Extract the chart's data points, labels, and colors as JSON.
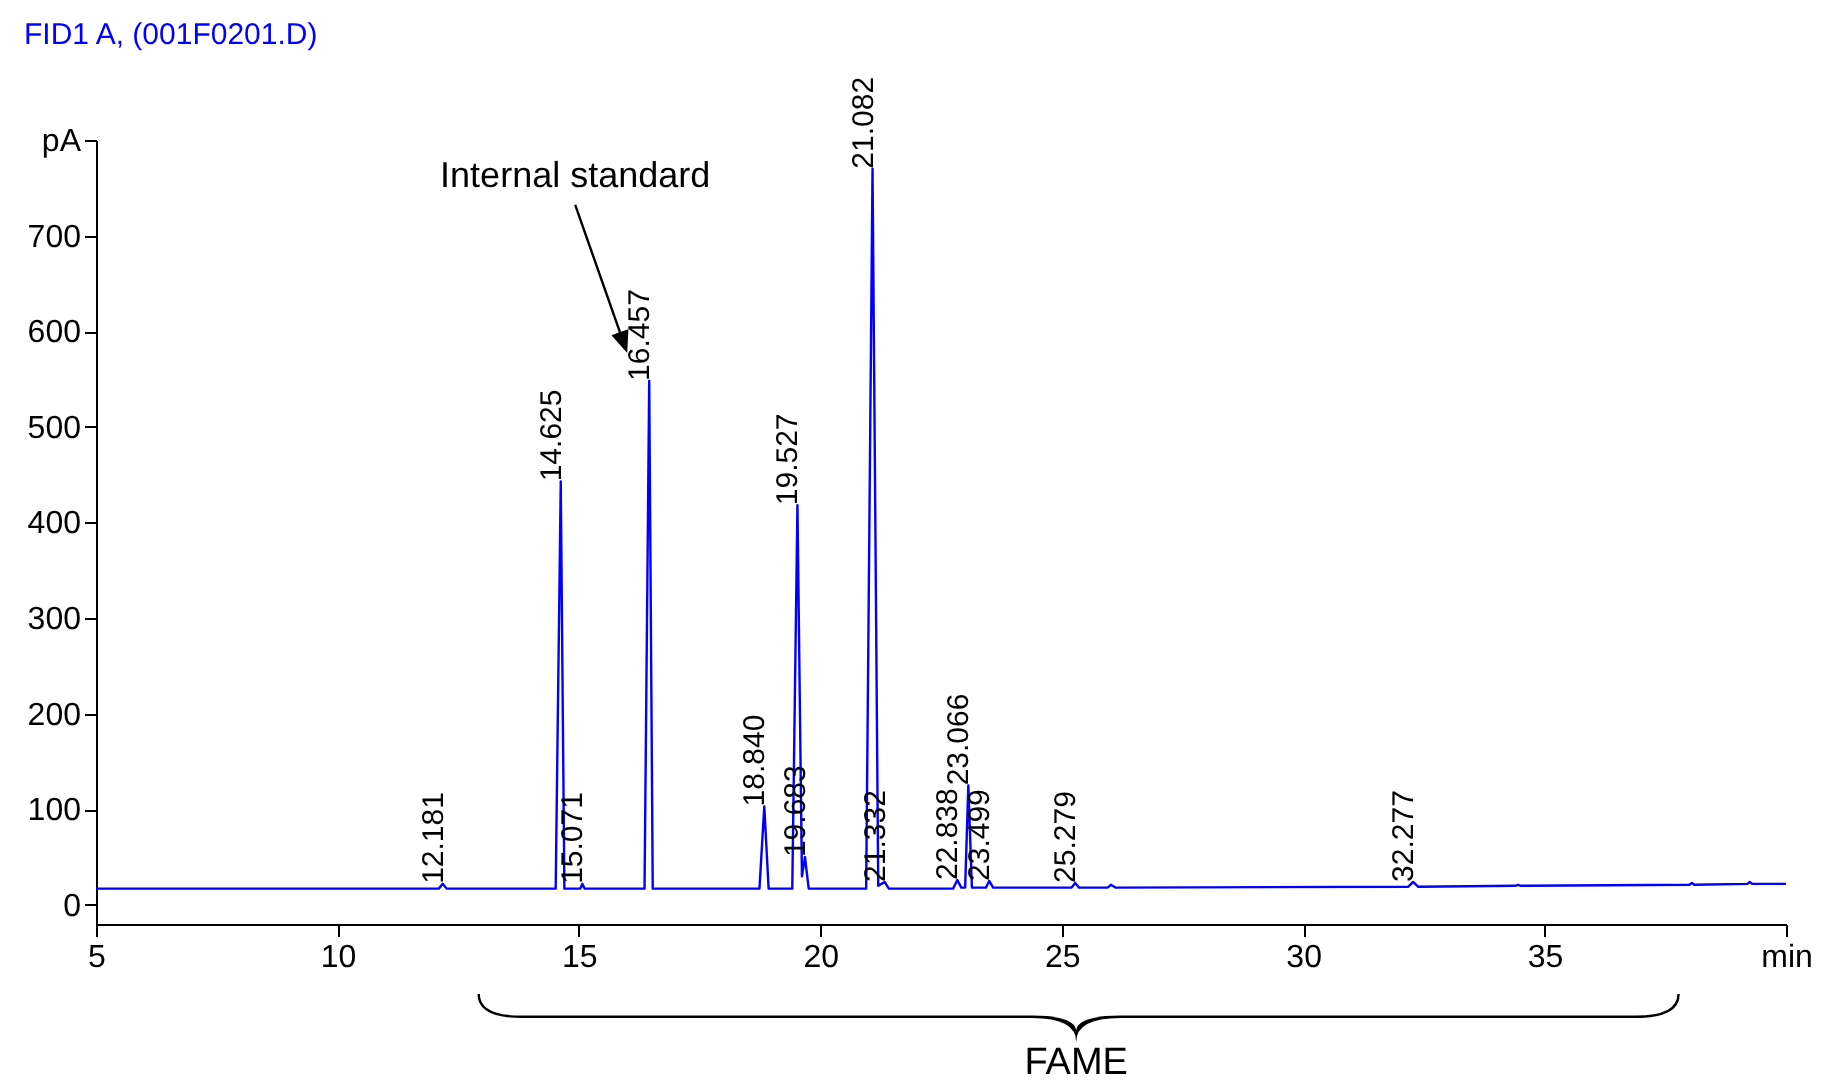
{
  "chart_data": {
    "type": "line",
    "title": "FID1 A,  (001F0201.D)",
    "x": [
      5,
      12.1,
      12.181,
      12.26,
      14.52,
      14.625,
      14.7,
      15.03,
      15.071,
      15.12,
      16.36,
      16.457,
      16.53,
      18.74,
      18.84,
      18.93,
      19.42,
      19.527,
      19.62,
      19.683,
      19.76,
      20.95,
      21.082,
      21.2,
      21.332,
      21.42,
      22.75,
      22.838,
      22.92,
      23.0,
      23.066,
      23.14,
      23.43,
      23.499,
      23.58,
      25.2,
      25.279,
      25.36,
      25.95,
      26.02,
      26.12,
      32.18,
      32.277,
      32.38,
      34.4,
      34.45,
      34.5,
      38.0,
      38.05,
      38.1,
      39.2,
      39.25,
      39.3,
      40
    ],
    "series": [
      {
        "color": "#0000ff",
        "values": [
          17,
          17,
          22,
          17,
          17,
          443,
          17,
          17,
          22,
          17,
          17,
          548,
          17,
          17,
          103,
          17,
          17,
          418,
          30,
          50,
          17,
          17,
          770,
          20,
          24,
          17,
          17,
          26,
          18,
          18,
          125,
          18,
          18,
          25,
          18,
          18,
          23,
          18,
          18,
          21,
          18,
          19,
          24,
          19,
          20,
          21,
          20,
          21,
          23,
          21,
          22,
          24,
          22,
          22
        ]
      }
    ],
    "xlim": [
      5,
      40
    ],
    "xticks": [
      5,
      10,
      15,
      20,
      25,
      30,
      35,
      {
        "value": 40,
        "label": "min"
      }
    ],
    "ylim": [
      -20,
      800
    ],
    "yticks": [
      0,
      100,
      200,
      300,
      400,
      500,
      600,
      700,
      {
        "value": 800,
        "label": "pA"
      }
    ],
    "annotations": [
      "Internal standard",
      "FAME",
      {
        "text": "12.181",
        "x": 12.181,
        "y": 22
      },
      {
        "text": "14.625",
        "x": 14.625,
        "y": 443
      },
      {
        "text": "15.071",
        "x": 15.071,
        "y": 22
      },
      {
        "text": "16.457",
        "x": 16.457,
        "y": 548
      },
      {
        "text": "18.840",
        "x": 18.84,
        "y": 103
      },
      {
        "text": "19.527",
        "x": 19.527,
        "y": 418
      },
      {
        "text": "19.683",
        "x": 19.683,
        "y": 50
      },
      {
        "text": "21.082",
        "x": 21.082,
        "y": 770
      },
      {
        "text": "21.332",
        "x": 21.332,
        "y": 24
      },
      {
        "text": "22.838",
        "x": 22.838,
        "y": 26
      },
      {
        "text": "23.066",
        "x": 23.066,
        "y": 125
      },
      {
        "text": "23.499",
        "x": 23.499,
        "y": 25
      },
      {
        "text": "25.279",
        "x": 25.279,
        "y": 23
      },
      {
        "text": "32.277",
        "x": 32.277,
        "y": 24
      }
    ]
  }
}
